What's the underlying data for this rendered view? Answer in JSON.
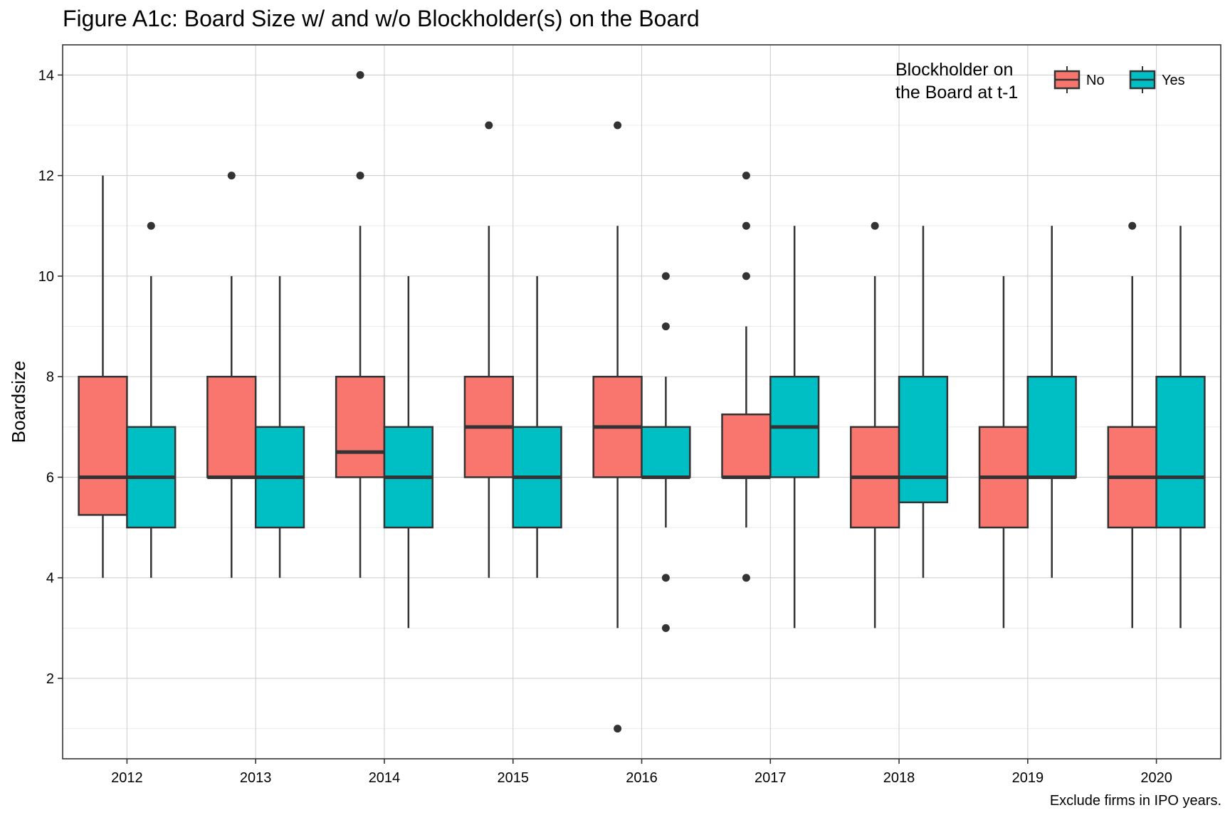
{
  "title": "Figure A1c: Board Size w/ and w/o Blockholder(s) on the Board",
  "caption": "Exclude firms in IPO years.",
  "chart_data": {
    "type": "boxplot",
    "title": "Figure A1c: Board Size w/ and w/o Blockholder(s) on the Board",
    "xlabel": "",
    "ylabel": "Boardsize",
    "ylim": [
      0.4,
      14.6
    ],
    "yticks": [
      2,
      4,
      6,
      8,
      10,
      12,
      14
    ],
    "grid": true,
    "legend": {
      "title_lines": [
        "Blockholder on",
        "the Board at t-1"
      ],
      "position": "top-right",
      "entries": [
        {
          "label": "No",
          "color": "#F8766D"
        },
        {
          "label": "Yes",
          "color": "#00BFC4"
        }
      ]
    },
    "categories": [
      "2012",
      "2013",
      "2014",
      "2015",
      "2016",
      "2017",
      "2018",
      "2019",
      "2020"
    ],
    "series": [
      {
        "name": "No",
        "color": "#F8766D",
        "boxes": [
          {
            "whisker_low": 4,
            "q1": 5.25,
            "median": 6,
            "q3": 8,
            "whisker_high": 12,
            "outliers": []
          },
          {
            "whisker_low": 4,
            "q1": 6,
            "median": 6,
            "q3": 8,
            "whisker_high": 10,
            "outliers": [
              12
            ]
          },
          {
            "whisker_low": 4,
            "q1": 6,
            "median": 6.5,
            "q3": 8,
            "whisker_high": 11,
            "outliers": [
              12,
              14
            ]
          },
          {
            "whisker_low": 4,
            "q1": 6,
            "median": 7,
            "q3": 8,
            "whisker_high": 11,
            "outliers": [
              13
            ]
          },
          {
            "whisker_low": 3,
            "q1": 6,
            "median": 7,
            "q3": 8,
            "whisker_high": 11,
            "outliers": [
              1,
              13
            ]
          },
          {
            "whisker_low": 5,
            "q1": 6,
            "median": 6,
            "q3": 7.25,
            "whisker_high": 9,
            "outliers": [
              4,
              10,
              11,
              12
            ]
          },
          {
            "whisker_low": 3,
            "q1": 5,
            "median": 6,
            "q3": 7,
            "whisker_high": 10,
            "outliers": [
              11
            ]
          },
          {
            "whisker_low": 3,
            "q1": 5,
            "median": 6,
            "q3": 7,
            "whisker_high": 10,
            "outliers": []
          },
          {
            "whisker_low": 3,
            "q1": 5,
            "median": 6,
            "q3": 7,
            "whisker_high": 10,
            "outliers": [
              11
            ]
          }
        ]
      },
      {
        "name": "Yes",
        "color": "#00BFC4",
        "boxes": [
          {
            "whisker_low": 4,
            "q1": 5,
            "median": 6,
            "q3": 7,
            "whisker_high": 10,
            "outliers": [
              11
            ]
          },
          {
            "whisker_low": 4,
            "q1": 5,
            "median": 6,
            "q3": 7,
            "whisker_high": 10,
            "outliers": []
          },
          {
            "whisker_low": 3,
            "q1": 5,
            "median": 6,
            "q3": 7,
            "whisker_high": 10,
            "outliers": []
          },
          {
            "whisker_low": 4,
            "q1": 5,
            "median": 6,
            "q3": 7,
            "whisker_high": 10,
            "outliers": []
          },
          {
            "whisker_low": 5,
            "q1": 6,
            "median": 6,
            "q3": 7,
            "whisker_high": 8,
            "outliers": [
              3,
              4,
              9,
              10
            ]
          },
          {
            "whisker_low": 3,
            "q1": 6,
            "median": 7,
            "q3": 8,
            "whisker_high": 11,
            "outliers": []
          },
          {
            "whisker_low": 4,
            "q1": 5.5,
            "median": 6,
            "q3": 8,
            "whisker_high": 11,
            "outliers": []
          },
          {
            "whisker_low": 4,
            "q1": 6,
            "median": 6,
            "q3": 8,
            "whisker_high": 11,
            "outliers": []
          },
          {
            "whisker_low": 3,
            "q1": 5,
            "median": 6,
            "q3": 8,
            "whisker_high": 11,
            "outliers": []
          }
        ]
      }
    ]
  }
}
